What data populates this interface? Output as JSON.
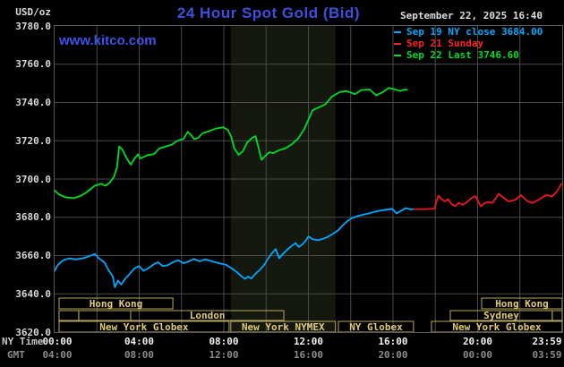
{
  "header": {
    "unit_label": "USD/oz",
    "title": "24 Hour Spot Gold (Bid)",
    "datetime": "September 22, 2025 16:40",
    "watermark": "www.kitco.com"
  },
  "legend": [
    {
      "label": "Sep 19 NY close 3684.00",
      "color": "#00a8ff"
    },
    {
      "label": "Sep 21 Sunday",
      "color": "#ff2222"
    },
    {
      "label": "Sep 22 Last 3746.60",
      "color": "#00dd22"
    }
  ],
  "axis": {
    "ny_label": "NY Time",
    "gmt_label": "GMT",
    "y_ticks": [
      "3780.0",
      "3760.0",
      "3740.0",
      "3720.0",
      "3700.0",
      "3680.0",
      "3660.0",
      "3640.0",
      "3620.0"
    ],
    "x_ticks": [
      {
        "hour": 0,
        "ny": "00:00",
        "gmt": "04:00"
      },
      {
        "hour": 4,
        "ny": "04:00",
        "gmt": "08:00"
      },
      {
        "hour": 8,
        "ny": "08:00",
        "gmt": "12:00"
      },
      {
        "hour": 12,
        "ny": "12:00",
        "gmt": "16:00"
      },
      {
        "hour": 16,
        "ny": "16:00",
        "gmt": "20:00"
      },
      {
        "hour": 20,
        "ny": "20:00",
        "gmt": "00:00"
      },
      {
        "hour": 24,
        "ny": "23:59",
        "gmt": "03:59"
      }
    ]
  },
  "colors": {
    "grid": "#4a4a4a",
    "plot_border": "#5a5a5a",
    "shade": "#14180f",
    "session_box": "#b9a95e",
    "session_text": "#e3cd72",
    "title_blue": "#3d50dc",
    "green": "#00dd22",
    "cyan": "#00a8ff",
    "red": "#f01818"
  },
  "sessions": {
    "shaded_hours": [
      8.33,
      13.28
    ],
    "rows": [
      {
        "boxes": [
          {
            "h1": 0.21,
            "h2": 5.59,
            "label": "Hong Kong"
          },
          {
            "h1": 20.19,
            "h2": 24.0,
            "label": "Hong Kong"
          }
        ]
      },
      {
        "boxes": [
          {
            "h1": 0.21,
            "h2": 1.14,
            "label": ""
          },
          {
            "h1": 1.14,
            "h2": 3.6,
            "label": ""
          },
          {
            "h1": 3.6,
            "h2": 10.84,
            "label": "London"
          },
          {
            "h1": 18.71,
            "h2": 23.53,
            "label": "Sydney"
          },
          {
            "h1": 23.53,
            "h2": 24.0,
            "label": ""
          }
        ]
      },
      {
        "boxes": [
          {
            "h1": 0.21,
            "h2": 8.25,
            "label": "New York Globex"
          },
          {
            "h1": 8.33,
            "h2": 13.28,
            "label": "New York NYMEX"
          },
          {
            "h1": 13.42,
            "h2": 16.97,
            "label": "NY Globex"
          },
          {
            "h1": 17.82,
            "h2": 24.0,
            "label": "New York Globex"
          }
        ]
      }
    ]
  },
  "chart_data": {
    "type": "line",
    "title": "24 Hour Spot Gold (Bid)",
    "xlabel": "NY Time (hours)",
    "ylabel": "USD/oz",
    "xlim": [
      0,
      24
    ],
    "ylim": [
      3620,
      3780
    ],
    "y_tick_step": 20,
    "grid": true,
    "legend_position": "top-right",
    "ny_close_reference": 3684.0,
    "last_price": 3746.6,
    "series": [
      {
        "name": "Sep 22 Last 3746.60",
        "color": "#00dd22",
        "points": [
          [
            0,
            3694
          ],
          [
            0.2,
            3692
          ],
          [
            0.5,
            3690.5
          ],
          [
            0.9,
            3690
          ],
          [
            1.2,
            3691
          ],
          [
            1.5,
            3693
          ],
          [
            1.9,
            3696.5
          ],
          [
            2.2,
            3697.5
          ],
          [
            2.4,
            3696.5
          ],
          [
            2.6,
            3698
          ],
          [
            2.8,
            3701
          ],
          [
            2.95,
            3706
          ],
          [
            3.05,
            3717
          ],
          [
            3.2,
            3715.5
          ],
          [
            3.35,
            3712
          ],
          [
            3.6,
            3707.5
          ],
          [
            3.8,
            3711
          ],
          [
            3.95,
            3713
          ],
          [
            4.05,
            3710.7
          ],
          [
            4.4,
            3712.5
          ],
          [
            4.7,
            3713
          ],
          [
            4.95,
            3716
          ],
          [
            5.25,
            3717
          ],
          [
            5.55,
            3718
          ],
          [
            5.8,
            3720
          ],
          [
            6.1,
            3721
          ],
          [
            6.3,
            3724.7
          ],
          [
            6.45,
            3723
          ],
          [
            6.6,
            3720.8
          ],
          [
            6.8,
            3721.6
          ],
          [
            7,
            3724
          ],
          [
            7.3,
            3725
          ],
          [
            7.6,
            3726.3
          ],
          [
            7.8,
            3726.7
          ],
          [
            8,
            3727
          ],
          [
            8.2,
            3725.5
          ],
          [
            8.35,
            3722
          ],
          [
            8.5,
            3716
          ],
          [
            8.7,
            3712.7
          ],
          [
            8.9,
            3714.5
          ],
          [
            9.1,
            3719
          ],
          [
            9.35,
            3721.6
          ],
          [
            9.5,
            3722.4
          ],
          [
            9.65,
            3716
          ],
          [
            9.78,
            3710
          ],
          [
            9.95,
            3712
          ],
          [
            10.15,
            3714
          ],
          [
            10.35,
            3713.5
          ],
          [
            10.6,
            3715
          ],
          [
            10.9,
            3716
          ],
          [
            11.2,
            3718
          ],
          [
            11.5,
            3721
          ],
          [
            11.8,
            3726
          ],
          [
            12,
            3731
          ],
          [
            12.2,
            3736
          ],
          [
            12.5,
            3737.5
          ],
          [
            12.8,
            3739
          ],
          [
            13.1,
            3743
          ],
          [
            13.5,
            3745.5
          ],
          [
            13.8,
            3746
          ],
          [
            14.2,
            3744.4
          ],
          [
            14.5,
            3746.5
          ],
          [
            14.9,
            3746.8
          ],
          [
            15.2,
            3743.7
          ],
          [
            15.5,
            3745.3
          ],
          [
            15.8,
            3747.6
          ],
          [
            16.1,
            3746.8
          ],
          [
            16.35,
            3746
          ],
          [
            16.55,
            3746.8
          ],
          [
            16.67,
            3746.6
          ]
        ]
      },
      {
        "name": "Sep 19 NY close 3684.00",
        "color": "#00a8ff",
        "points": [
          [
            0,
            3652
          ],
          [
            0.15,
            3655
          ],
          [
            0.4,
            3657.5
          ],
          [
            0.7,
            3658.5
          ],
          [
            1,
            3658
          ],
          [
            1.3,
            3658.5
          ],
          [
            1.6,
            3659.5
          ],
          [
            1.9,
            3660.8
          ],
          [
            2.1,
            3658.5
          ],
          [
            2.35,
            3656.5
          ],
          [
            2.55,
            3652.5
          ],
          [
            2.75,
            3649
          ],
          [
            2.85,
            3643.5
          ],
          [
            3,
            3647
          ],
          [
            3.15,
            3644.8
          ],
          [
            3.35,
            3648
          ],
          [
            3.6,
            3651
          ],
          [
            3.8,
            3653.5
          ],
          [
            4,
            3654.5
          ],
          [
            4.2,
            3652
          ],
          [
            4.45,
            3653.5
          ],
          [
            4.7,
            3655.5
          ],
          [
            4.9,
            3656.5
          ],
          [
            5.1,
            3654.5
          ],
          [
            5.35,
            3655
          ],
          [
            5.6,
            3656.5
          ],
          [
            5.85,
            3657.5
          ],
          [
            6.1,
            3656
          ],
          [
            6.35,
            3657
          ],
          [
            6.6,
            3658.2
          ],
          [
            6.85,
            3657
          ],
          [
            7.1,
            3658
          ],
          [
            7.35,
            3657.3
          ],
          [
            7.6,
            3656.5
          ],
          [
            7.85,
            3655.8
          ],
          [
            8.1,
            3655.2
          ],
          [
            8.35,
            3653.5
          ],
          [
            8.6,
            3651.5
          ],
          [
            8.8,
            3649.5
          ],
          [
            9,
            3647.8
          ],
          [
            9.15,
            3649
          ],
          [
            9.3,
            3648
          ],
          [
            9.5,
            3650.5
          ],
          [
            9.7,
            3652.5
          ],
          [
            9.9,
            3655
          ],
          [
            10.1,
            3658.5
          ],
          [
            10.3,
            3661.5
          ],
          [
            10.45,
            3663.4
          ],
          [
            10.62,
            3658.6
          ],
          [
            10.8,
            3661
          ],
          [
            11,
            3663
          ],
          [
            11.2,
            3665
          ],
          [
            11.39,
            3666.5
          ],
          [
            11.55,
            3664.5
          ],
          [
            11.7,
            3665.7
          ],
          [
            11.85,
            3667.5
          ],
          [
            12,
            3670
          ],
          [
            12.2,
            3668.5
          ],
          [
            12.45,
            3668
          ],
          [
            12.7,
            3668.8
          ],
          [
            12.87,
            3669.5
          ],
          [
            13.1,
            3671
          ],
          [
            13.42,
            3673.3
          ],
          [
            13.6,
            3675.5
          ],
          [
            13.84,
            3678
          ],
          [
            14.05,
            3679.5
          ],
          [
            14.26,
            3680.4
          ],
          [
            14.55,
            3681.3
          ],
          [
            14.86,
            3682
          ],
          [
            15.1,
            3682.8
          ],
          [
            15.4,
            3683.5
          ],
          [
            15.7,
            3684
          ],
          [
            15.96,
            3684.4
          ],
          [
            16.17,
            3682
          ],
          [
            16.4,
            3683.5
          ],
          [
            16.6,
            3684.8
          ],
          [
            16.8,
            3684.2
          ],
          [
            17,
            3684.3
          ]
        ]
      },
      {
        "name": "Sep 21 Sunday",
        "color": "#f01818",
        "points": [
          [
            17,
            3684.3
          ],
          [
            17.5,
            3684.3
          ],
          [
            17.95,
            3684.5
          ],
          [
            18.05,
            3688
          ],
          [
            18.15,
            3691.3
          ],
          [
            18.3,
            3689.5
          ],
          [
            18.45,
            3688.3
          ],
          [
            18.6,
            3689.5
          ],
          [
            18.75,
            3687
          ],
          [
            18.95,
            3685.8
          ],
          [
            19.1,
            3687.5
          ],
          [
            19.3,
            3686.5
          ],
          [
            19.5,
            3688
          ],
          [
            19.7,
            3690
          ],
          [
            19.9,
            3691
          ],
          [
            20.15,
            3685.7
          ],
          [
            20.35,
            3687.5
          ],
          [
            20.5,
            3688
          ],
          [
            20.7,
            3687.5
          ],
          [
            21,
            3692.3
          ],
          [
            21.25,
            3690
          ],
          [
            21.46,
            3688.3
          ],
          [
            21.76,
            3689
          ],
          [
            22.05,
            3691.6
          ],
          [
            22.35,
            3688.5
          ],
          [
            22.6,
            3687.5
          ],
          [
            22.94,
            3689.5
          ],
          [
            23.24,
            3691.6
          ],
          [
            23.53,
            3691
          ],
          [
            23.75,
            3693.5
          ],
          [
            23.96,
            3697.5
          ]
        ]
      }
    ]
  }
}
